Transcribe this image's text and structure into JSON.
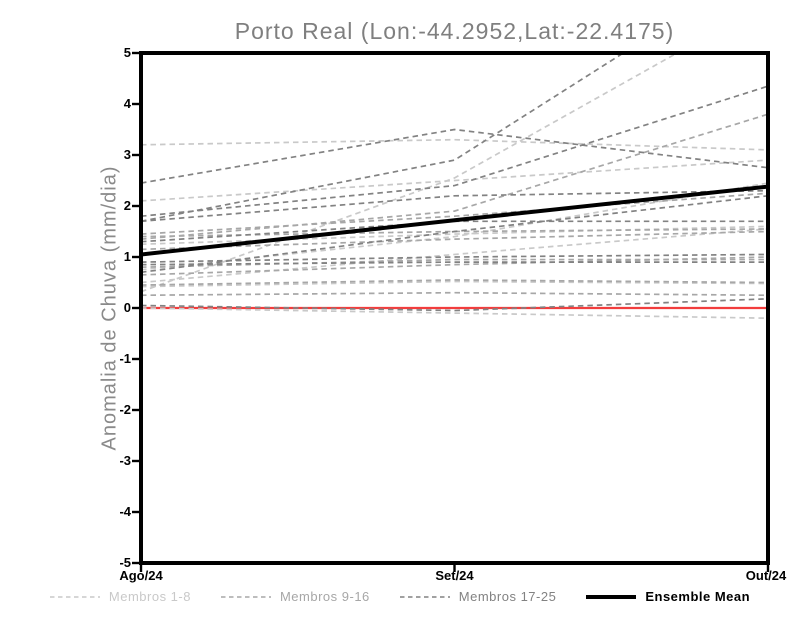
{
  "chart_data": {
    "type": "line",
    "title": "Porto Real (Lon:-44.2952,Lat:-22.4175)",
    "ylabel": "Anomalia de Chuva (mm/dia)",
    "x": [
      "Ago/24",
      "Set/24",
      "Out/24"
    ],
    "ylim": [
      -5,
      5
    ],
    "yticks": [
      5,
      4,
      3,
      2,
      1,
      0,
      -1,
      -2,
      -3,
      -4,
      -5
    ],
    "grid": false,
    "legend_position": "bottom",
    "zero_line": {
      "value": 0,
      "color": "#f23d3d"
    },
    "groups": [
      {
        "name": "Membros 1-8",
        "color": "#c9c9c9",
        "style": "dashed",
        "members": [
          [
            3.2,
            3.3,
            3.1
          ],
          [
            2.1,
            2.5,
            2.9
          ],
          [
            1.25,
            1.45,
            1.6
          ],
          [
            0.75,
            1.4,
            2.45
          ],
          [
            0.5,
            1.05,
            1.55
          ],
          [
            0.42,
            0.52,
            0.48
          ],
          [
            0.32,
            2.55,
            6.0
          ],
          [
            0.0,
            -0.1,
            -0.2
          ]
        ]
      },
      {
        "name": "Membros 9-16",
        "color": "#a7a7a7",
        "style": "dashed",
        "members": [
          [
            1.45,
            1.8,
            2.25
          ],
          [
            1.4,
            1.5,
            1.55
          ],
          [
            1.35,
            1.9,
            3.8
          ],
          [
            1.15,
            1.35,
            1.5
          ],
          [
            0.8,
            0.95,
            0.95
          ],
          [
            0.65,
            0.85,
            1.0
          ],
          [
            0.45,
            0.55,
            0.5
          ],
          [
            0.25,
            0.3,
            0.25
          ]
        ]
      },
      {
        "name": "Membros 17-25",
        "color": "#828282",
        "style": "dashed",
        "members": [
          [
            2.45,
            3.5,
            2.75
          ],
          [
            1.7,
            2.9,
            6.8
          ],
          [
            1.8,
            2.4,
            4.35
          ],
          [
            1.7,
            2.2,
            2.3
          ],
          [
            0.9,
            1.0,
            1.05
          ],
          [
            0.85,
            0.9,
            0.9
          ],
          [
            0.7,
            1.5,
            2.2
          ],
          [
            0.05,
            -0.05,
            0.18
          ],
          [
            1.3,
            1.7,
            1.7
          ]
        ]
      }
    ],
    "mean": {
      "name": "Ensemble Mean",
      "color": "#000000",
      "style": "solid",
      "values": [
        1.05,
        1.72,
        2.38
      ]
    }
  }
}
